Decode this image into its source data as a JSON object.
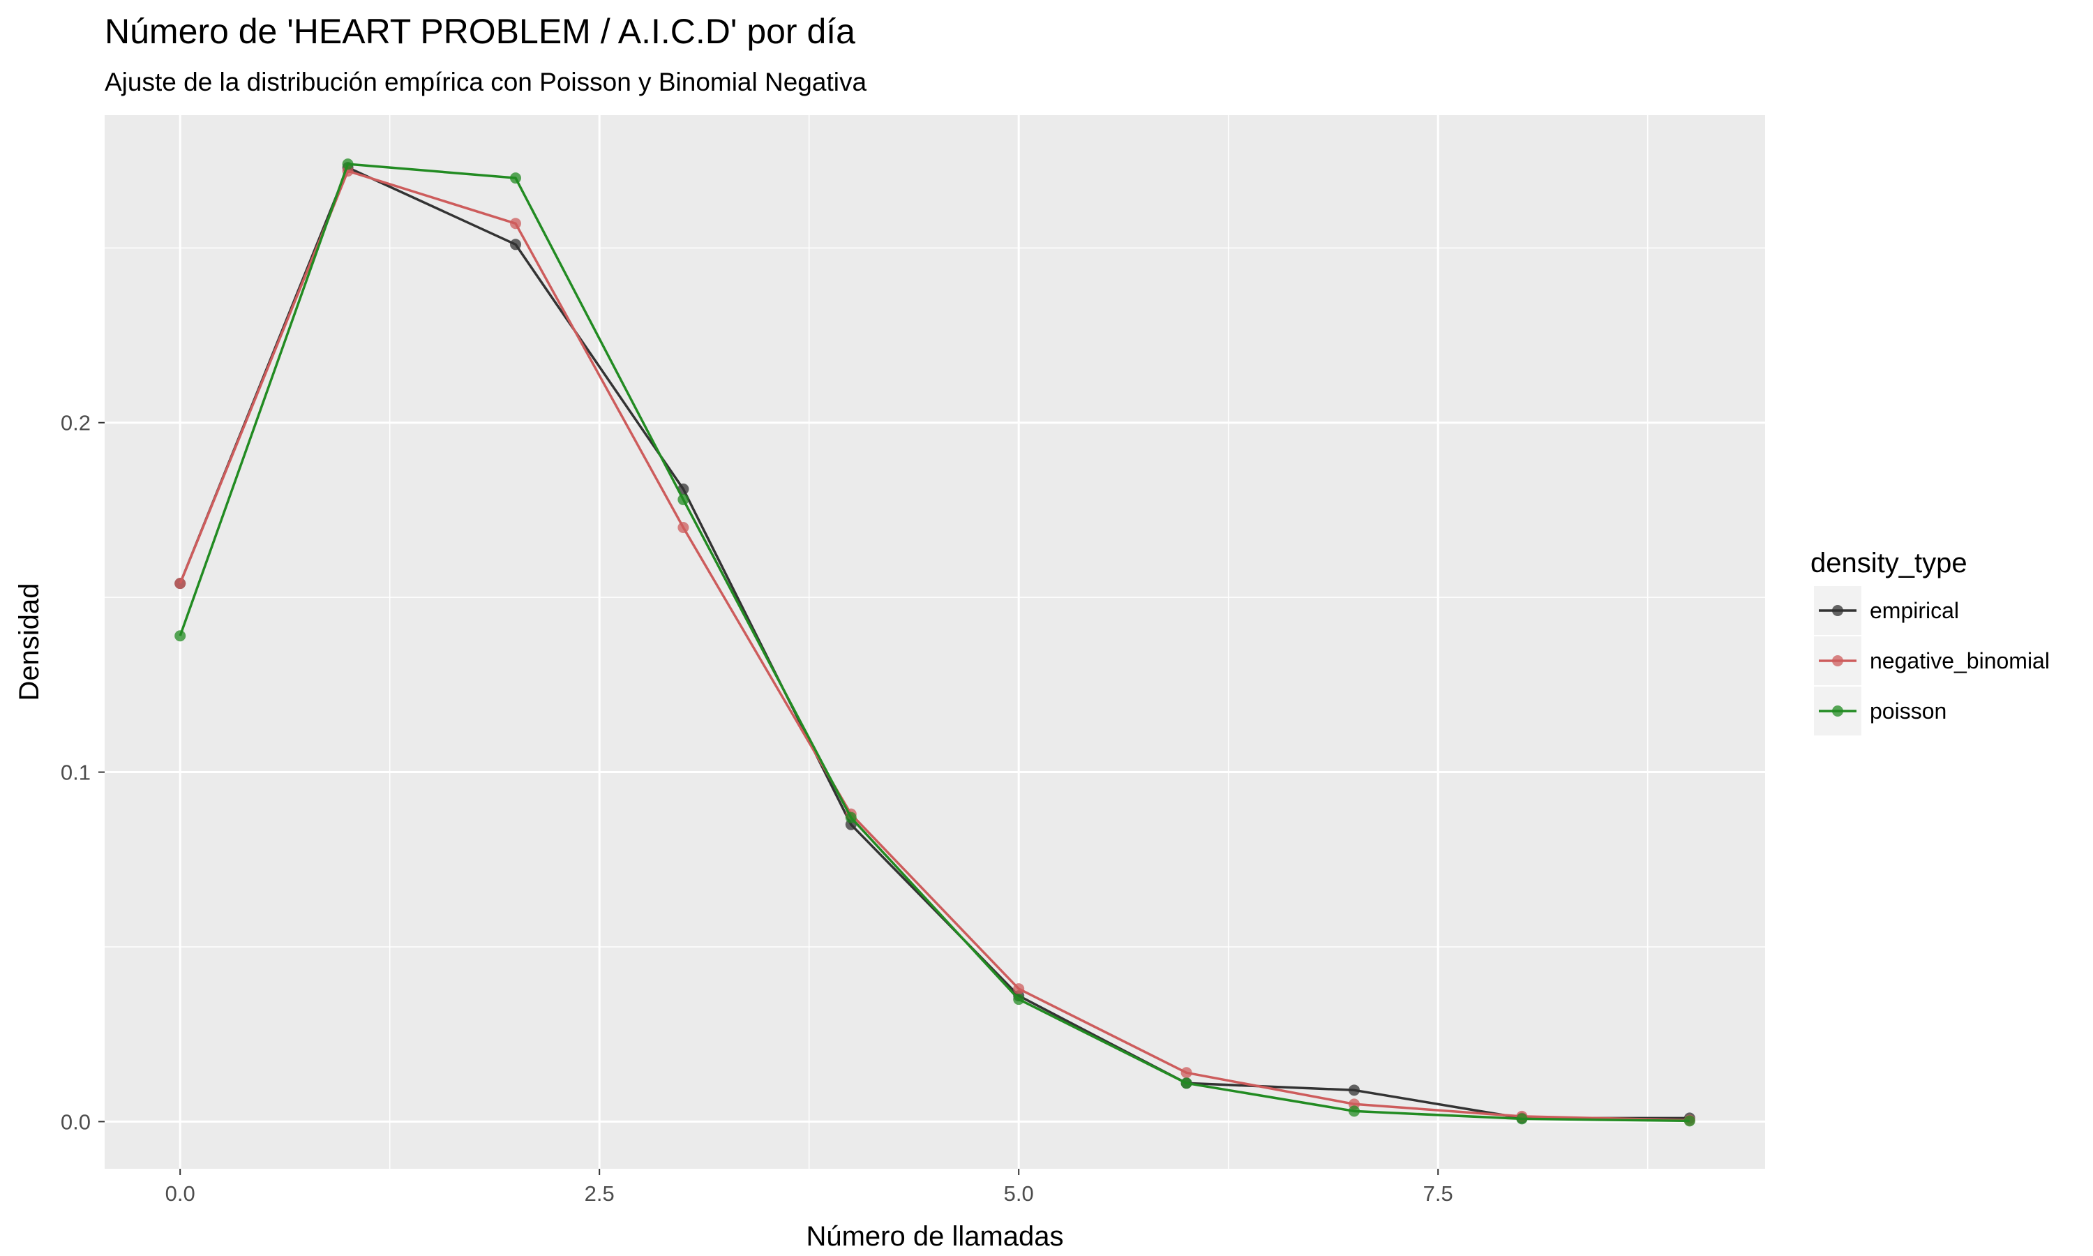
{
  "chart_data": {
    "type": "line",
    "title": "Número de 'HEART PROBLEM / A.I.C.D' por día",
    "subtitle": "Ajuste de la distribución empírica con Poisson y Binomial Negativa",
    "xlabel": "Número de llamadas",
    "ylabel": "Densidad",
    "xlim": [
      -0.45,
      9.45
    ],
    "ylim": [
      -0.0135,
      0.288
    ],
    "x_ticks": [
      0,
      2.5,
      5,
      7.5
    ],
    "x_tick_labels": [
      "0.0",
      "2.5",
      "5.0",
      "7.5"
    ],
    "y_ticks": [
      0,
      0.1,
      0.2
    ],
    "y_tick_labels": [
      "0.0",
      "0.1",
      "0.2"
    ],
    "x_minor_ticks": [
      1.25,
      3.75,
      6.25,
      8.75
    ],
    "y_minor_ticks": [
      0.05,
      0.15,
      0.25
    ],
    "grid": true,
    "legend_position": "right",
    "legend_title": "density_type",
    "x": [
      0,
      1,
      2,
      3,
      4,
      5,
      6,
      7,
      8,
      9
    ],
    "series": [
      {
        "name": "empirical",
        "color": "#333333",
        "values": [
          0.154,
          0.273,
          0.251,
          0.181,
          0.085,
          0.036,
          0.011,
          0.009,
          0.001,
          0.001
        ]
      },
      {
        "name": "negative_binomial",
        "color": "#cd5c5c",
        "values": [
          0.154,
          0.272,
          0.257,
          0.17,
          0.088,
          0.038,
          0.014,
          0.005,
          0.0015,
          0.0004
        ]
      },
      {
        "name": "poisson",
        "color": "#228b22",
        "values": [
          0.139,
          0.274,
          0.27,
          0.178,
          0.087,
          0.035,
          0.011,
          0.003,
          0.0008,
          0.0002
        ]
      }
    ]
  }
}
